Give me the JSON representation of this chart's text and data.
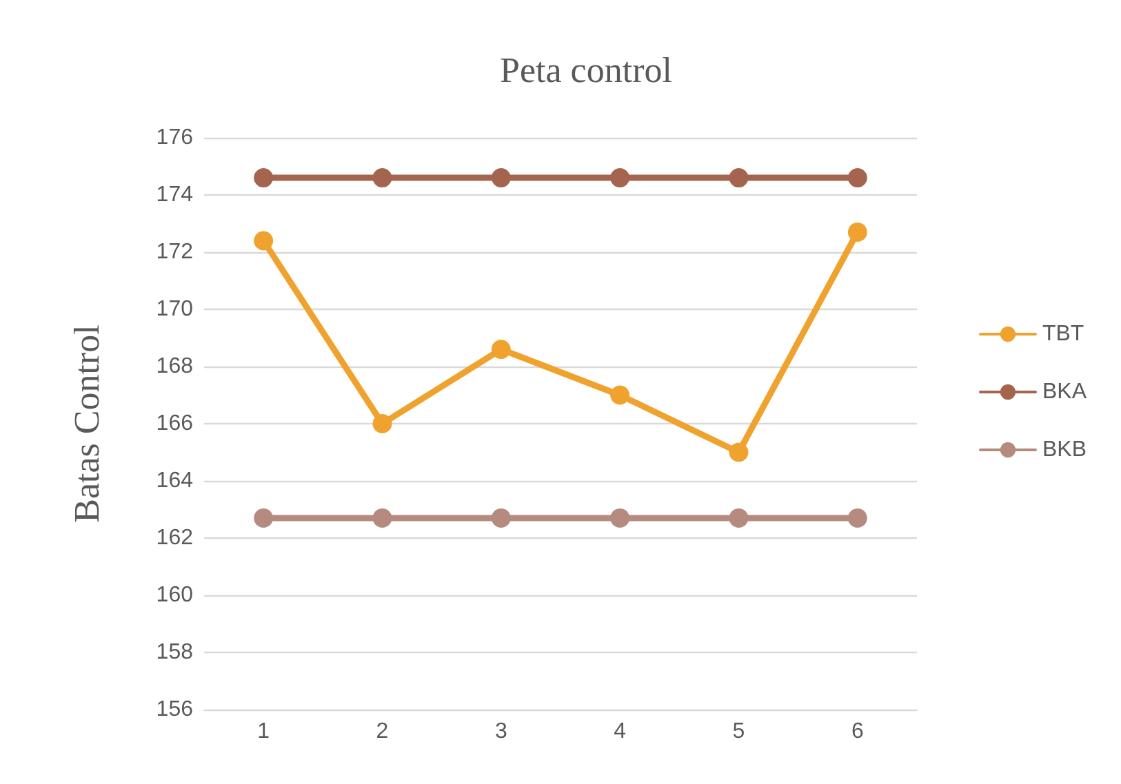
{
  "chart_data": {
    "type": "line",
    "title": "Peta control",
    "ylabel": "Batas Control",
    "categories": [
      "1",
      "2",
      "3",
      "4",
      "5",
      "6"
    ],
    "series": [
      {
        "name": "TBT",
        "color": "#f0a22e",
        "values": [
          172.4,
          166.0,
          168.6,
          167.0,
          165.0,
          172.7
        ]
      },
      {
        "name": "BKA",
        "color": "#a5644e",
        "values": [
          174.6,
          174.6,
          174.6,
          174.6,
          174.6,
          174.6
        ]
      },
      {
        "name": "BKB",
        "color": "#b58b80",
        "values": [
          162.7,
          162.7,
          162.7,
          162.7,
          162.7,
          162.7
        ]
      }
    ],
    "ylim": [
      156,
      176
    ],
    "yticks": [
      156,
      158,
      160,
      162,
      164,
      166,
      168,
      170,
      172,
      174,
      176
    ],
    "grid": "y",
    "legend": "right",
    "marker": "circle",
    "line_style": "solid"
  }
}
